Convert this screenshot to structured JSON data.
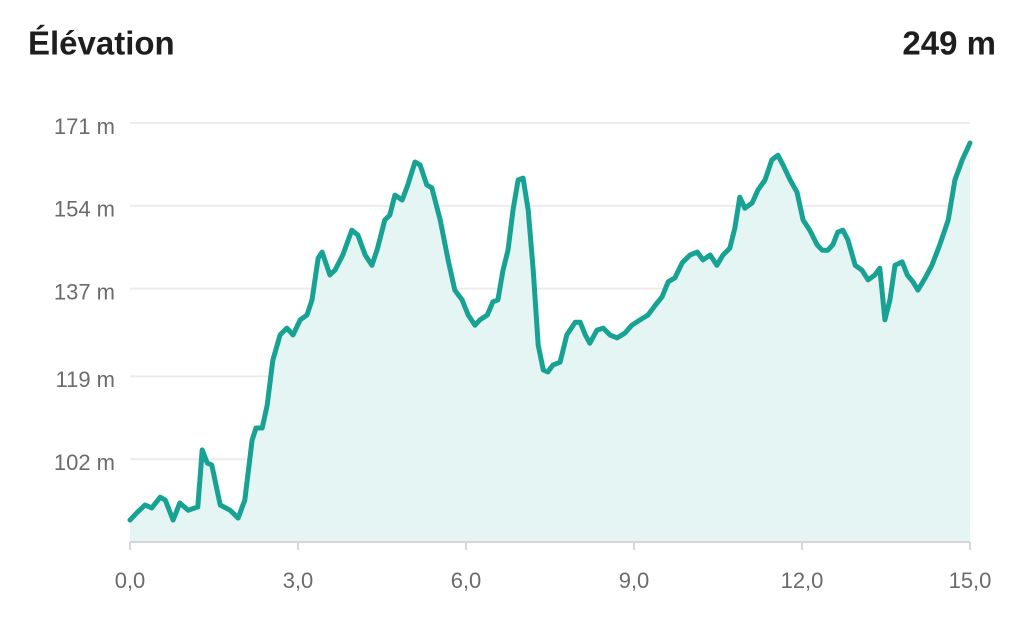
{
  "chart_data": {
    "type": "area",
    "title": "Élévation",
    "annotation": "249 m",
    "x": [
      0,
      0.13,
      0.27,
      0.39,
      0.54,
      0.63,
      0.77,
      0.89,
      1.04,
      1.21,
      1.29,
      1.38,
      1.46,
      1.61,
      1.79,
      1.93,
      2.05,
      2.18,
      2.25,
      2.36,
      2.45,
      2.55,
      2.68,
      2.8,
      2.91,
      3.04,
      3.16,
      3.25,
      3.36,
      3.43,
      3.57,
      3.66,
      3.8,
      3.96,
      4.07,
      4.2,
      4.32,
      4.41,
      4.55,
      4.64,
      4.73,
      4.86,
      4.96,
      5.09,
      5.18,
      5.3,
      5.39,
      5.54,
      5.68,
      5.8,
      5.93,
      6.04,
      6.16,
      6.25,
      6.38,
      6.48,
      6.57,
      6.66,
      6.75,
      6.84,
      6.93,
      7.02,
      7.11,
      7.2,
      7.29,
      7.38,
      7.46,
      7.55,
      7.68,
      7.8,
      7.95,
      8.04,
      8.13,
      8.21,
      8.34,
      8.45,
      8.57,
      8.7,
      8.84,
      8.96,
      9.11,
      9.25,
      9.38,
      9.5,
      9.61,
      9.73,
      9.86,
      10.0,
      10.13,
      10.23,
      10.36,
      10.48,
      10.59,
      10.71,
      10.8,
      10.89,
      10.98,
      11.11,
      11.21,
      11.34,
      11.46,
      11.57,
      11.66,
      11.79,
      11.91,
      12.02,
      12.14,
      12.27,
      12.36,
      12.46,
      12.55,
      12.64,
      12.73,
      12.82,
      12.95,
      13.07,
      13.18,
      13.3,
      13.39,
      13.48,
      13.57,
      13.66,
      13.79,
      13.88,
      13.98,
      14.07,
      14.2,
      14.32,
      14.46,
      14.61,
      14.73,
      14.86,
      15.0
    ],
    "series": [
      {
        "color": "#17a293",
        "fill": "#e5f5f3",
        "values": [
          89.5,
          91.1,
          92.6,
          92.0,
          94.2,
          93.6,
          89.5,
          93.0,
          91.5,
          92.2,
          103.9,
          101.2,
          100.8,
          92.6,
          91.5,
          89.9,
          93.6,
          105.9,
          108.4,
          108.4,
          113.1,
          122.3,
          127.5,
          128.9,
          127.5,
          130.6,
          131.6,
          134.7,
          143.3,
          144.5,
          139.8,
          140.8,
          143.9,
          149.0,
          148.0,
          143.9,
          141.8,
          144.9,
          151.1,
          152.1,
          156.2,
          155.2,
          158.3,
          163.0,
          162.4,
          158.3,
          157.7,
          151.1,
          142.9,
          136.7,
          134.7,
          131.6,
          129.5,
          130.6,
          131.6,
          134.3,
          134.7,
          140.8,
          144.9,
          153.1,
          159.3,
          159.7,
          153.1,
          140.8,
          125.4,
          120.3,
          119.9,
          121.3,
          121.9,
          127.5,
          130.1,
          130.1,
          127.5,
          125.8,
          128.5,
          128.9,
          127.5,
          126.9,
          127.9,
          129.5,
          130.6,
          131.6,
          133.6,
          135.3,
          138.4,
          139.2,
          142.3,
          143.9,
          144.5,
          142.9,
          143.9,
          141.8,
          143.9,
          145.3,
          149.4,
          155.8,
          153.5,
          154.6,
          157.2,
          159.3,
          163.4,
          164.4,
          162.4,
          159.3,
          156.8,
          151.1,
          149.0,
          146.0,
          144.9,
          144.9,
          146.0,
          148.6,
          149.0,
          147.0,
          141.8,
          140.8,
          138.8,
          139.8,
          141.2,
          130.6,
          134.7,
          141.8,
          142.5,
          139.8,
          138.4,
          136.7,
          139.2,
          141.8,
          146.0,
          151.1,
          159.3,
          163.4,
          166.9
        ]
      }
    ],
    "xlim": [
      0,
      15
    ],
    "xticks": [
      {
        "value": 0,
        "label": "0,0"
      },
      {
        "value": 3,
        "label": "3,0"
      },
      {
        "value": 6,
        "label": "6,0"
      },
      {
        "value": 9,
        "label": "9,0"
      },
      {
        "value": 12,
        "label": "12,0"
      },
      {
        "value": 15,
        "label": "15,0"
      }
    ],
    "ylim": [
      85,
      171
    ],
    "yticks": [
      {
        "value": 102,
        "label": "102 m"
      },
      {
        "value": 119,
        "label": "119 m"
      },
      {
        "value": 137,
        "label": "137 m"
      },
      {
        "value": 154,
        "label": "154 m"
      },
      {
        "value": 171,
        "label": "171 m"
      }
    ],
    "grid": true
  }
}
